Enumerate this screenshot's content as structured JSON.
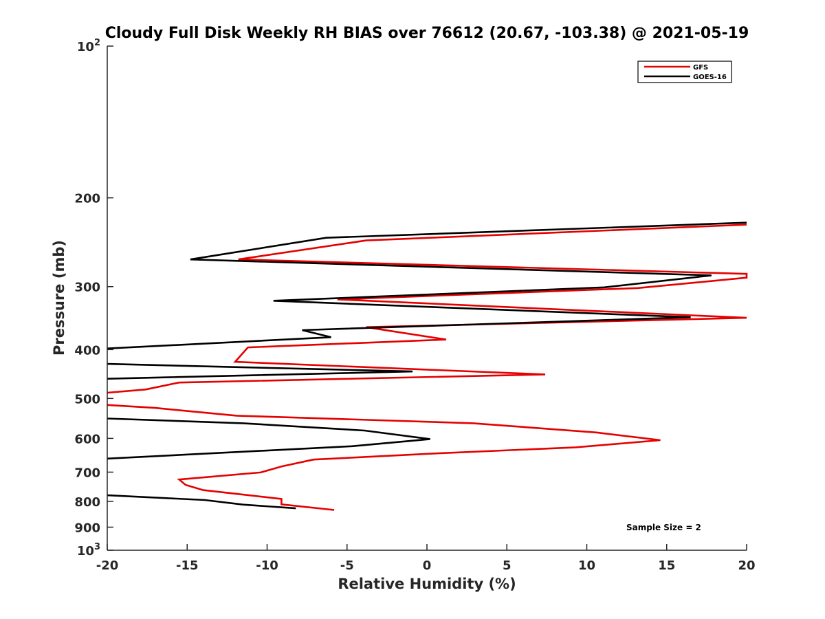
{
  "chart_data": {
    "type": "line",
    "title": "Cloudy Full Disk Weekly RH BIAS over 76612 (20.67, -103.38) @ 2021-05-19",
    "xlabel": "Relative Humidity (%)",
    "ylabel": "Pressure (mb)",
    "xlim": [
      -20,
      20
    ],
    "ylim": [
      100,
      1000
    ],
    "yscale": "log",
    "y_reversed": true,
    "grid": false,
    "xticks": [
      -20,
      -15,
      -10,
      -5,
      0,
      5,
      10,
      15,
      20
    ],
    "xtick_labels": [
      "-20",
      "-15",
      "-10",
      "-5",
      "0",
      "5",
      "10",
      "15",
      "20"
    ],
    "yticks": [
      200,
      300,
      400,
      500,
      600,
      700,
      800,
      900
    ],
    "ytick_labels": [
      "200",
      "300",
      "400",
      "500",
      "600",
      "700",
      "800",
      "900"
    ],
    "ylim_label_base": "10",
    "ylim_label_exponents": [
      "2",
      "3"
    ],
    "legend_position": "top-right",
    "annotation": "Sample Size = 2",
    "series": [
      {
        "name": "GFS",
        "color": "#e50000",
        "points": [
          [
            20,
            226
          ],
          [
            -3.8,
            243
          ],
          [
            -11.8,
            265
          ],
          [
            20,
            283
          ],
          [
            20,
            288
          ],
          [
            13.2,
            302
          ],
          [
            -5.6,
            318
          ],
          [
            20,
            346
          ],
          [
            -3.8,
            361
          ],
          [
            1.2,
            382
          ],
          [
            -11.2,
            396
          ],
          [
            -12,
            423
          ],
          [
            7.4,
            448
          ],
          [
            -15.5,
            465
          ],
          [
            -17.6,
            480
          ],
          [
            -20,
            487
          ]
        ]
      },
      {
        "name": "GFS",
        "color": "#e50000",
        "points": [
          [
            -20,
            515
          ],
          [
            -17,
            522
          ],
          [
            -11.9,
            541
          ],
          [
            2.9,
            560
          ],
          [
            10.6,
            584
          ],
          [
            14.6,
            605
          ],
          [
            9.3,
            625
          ],
          [
            0.4,
            643
          ],
          [
            -7.1,
            661
          ],
          [
            -9.1,
            682
          ],
          [
            -10.4,
            701
          ],
          [
            -15.5,
            724
          ],
          [
            -15.1,
            742
          ],
          [
            -14,
            760
          ],
          [
            -9.1,
            791
          ],
          [
            -9.1,
            811
          ],
          [
            -5.8,
            832
          ]
        ]
      },
      {
        "name": "GOES-16",
        "color": "#000000",
        "points": [
          [
            20,
            224
          ],
          [
            -6.3,
            240
          ],
          [
            -14.8,
            265
          ],
          [
            17.8,
            285
          ],
          [
            11.1,
            301
          ],
          [
            -9.6,
            320
          ],
          [
            16.5,
            345
          ],
          [
            -7.8,
            366
          ],
          [
            -6,
            378
          ],
          [
            -20,
            398
          ]
        ]
      },
      {
        "name": "GOES-16",
        "color": "#000000",
        "points": [
          [
            -20,
            427
          ],
          [
            -0.9,
            442
          ],
          [
            -20,
            457
          ]
        ]
      },
      {
        "name": "GOES-16",
        "color": "#000000",
        "points": [
          [
            -20,
            548
          ],
          [
            -11.5,
            560
          ],
          [
            -3.9,
            579
          ],
          [
            0.2,
            602
          ],
          [
            -4.7,
            622
          ],
          [
            -20,
            658
          ]
        ]
      },
      {
        "name": "GOES-16",
        "color": "#000000",
        "points": [
          [
            -20,
            778
          ],
          [
            -13.9,
            795
          ],
          [
            -11.5,
            812
          ],
          [
            -8.2,
            826
          ]
        ]
      }
    ],
    "legend": [
      {
        "label": "GFS",
        "color": "#e50000"
      },
      {
        "label": "GOES-16",
        "color": "#000000"
      }
    ]
  }
}
